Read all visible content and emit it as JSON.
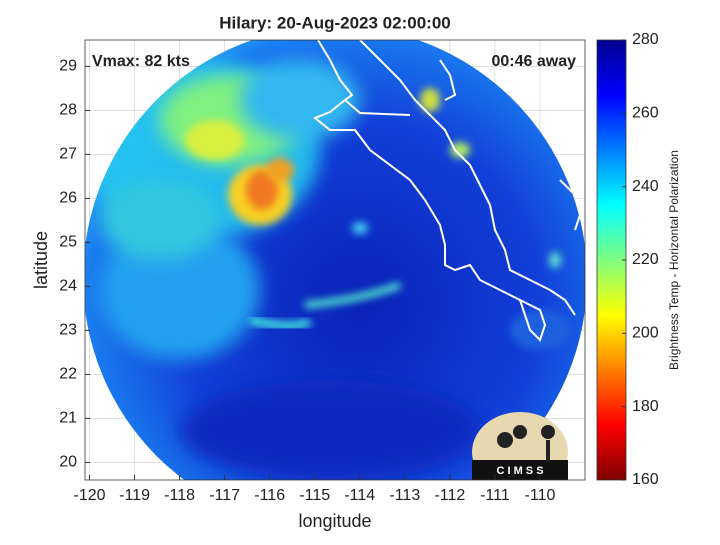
{
  "chart_data": {
    "type": "map",
    "title": "Hilary: 20-Aug-2023 02:00:00",
    "annotations": [
      "Vmax: 82 kts",
      "00:46 away"
    ],
    "xlabel": "longitude",
    "ylabel": "latitude",
    "xlim": [
      -120.1,
      -109.0
    ],
    "ylim": [
      19.6,
      29.6
    ],
    "xticks": [
      -120,
      -119,
      -118,
      -117,
      -116,
      -115,
      -114,
      -113,
      -112,
      -111,
      -110
    ],
    "yticks": [
      20,
      21,
      22,
      23,
      24,
      25,
      26,
      27,
      28,
      29
    ],
    "grid": true,
    "colorbar": {
      "label": "Brightness Temp - Horizontal Polarization",
      "lim": [
        160,
        280
      ],
      "ticks": [
        160,
        180,
        200,
        220,
        240,
        260,
        280
      ],
      "colormap": [
        "#7f0000",
        "#ff0000",
        "#ff7f00",
        "#ffff00",
        "#7fff7f",
        "#00ffff",
        "#007fff",
        "#0000ff",
        "#00008f"
      ]
    }
  },
  "logo": {
    "text": "C I M S S"
  }
}
